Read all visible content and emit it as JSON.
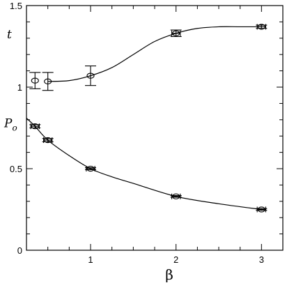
{
  "chart_data": {
    "type": "scatter",
    "title": "",
    "xlabel": "β",
    "ylabel": "",
    "xlim": [
      0.25,
      3.25
    ],
    "ylim": [
      0,
      1.5
    ],
    "x_ticks": [
      {
        "value": 1,
        "label": "1"
      },
      {
        "value": 2,
        "label": "2"
      },
      {
        "value": 3,
        "label": "3"
      }
    ],
    "y_ticks": [
      {
        "value": 0,
        "label": "0"
      },
      {
        "value": 0.5,
        "label": "0.5"
      },
      {
        "value": 1,
        "label": "1"
      },
      {
        "value": 1.5,
        "label": "1.5"
      }
    ],
    "series": [
      {
        "name": "t",
        "label_anchor": {
          "x": 0.33,
          "y": 1.3
        },
        "points": [
          {
            "x": 0.35,
            "y": 1.04,
            "err": 0.05,
            "xerr": 0
          },
          {
            "x": 0.5,
            "y": 1.035,
            "err": 0.055,
            "xerr": 0
          },
          {
            "x": 1.0,
            "y": 1.07,
            "err": 0.06,
            "xerr": 0
          },
          {
            "x": 2.0,
            "y": 1.33,
            "err": 0.02,
            "xerr": 0.05
          },
          {
            "x": 3.0,
            "y": 1.37,
            "err": 0.01,
            "xerr": 0.05
          }
        ],
        "curve": [
          [
            0.5,
            1.035
          ],
          [
            0.75,
            1.04
          ],
          [
            1.0,
            1.07
          ],
          [
            1.25,
            1.12
          ],
          [
            1.5,
            1.2
          ],
          [
            1.75,
            1.28
          ],
          [
            2.0,
            1.33
          ],
          [
            2.25,
            1.36
          ],
          [
            2.5,
            1.37
          ],
          [
            2.75,
            1.37
          ],
          [
            3.0,
            1.37
          ]
        ]
      },
      {
        "name": "P",
        "name_subscript": "o",
        "label_anchor": {
          "x": 0.27,
          "y": 0.755
        },
        "points": [
          {
            "x": 0.35,
            "y": 0.76,
            "err": 0.01,
            "xerr": 0.05
          },
          {
            "x": 0.5,
            "y": 0.675,
            "err": 0.01,
            "xerr": 0.05
          },
          {
            "x": 1.0,
            "y": 0.5,
            "err": 0.006,
            "xerr": 0.05
          },
          {
            "x": 2.0,
            "y": 0.33,
            "err": 0.005,
            "xerr": 0.05
          },
          {
            "x": 3.0,
            "y": 0.25,
            "err": 0.005,
            "xerr": 0.05
          }
        ],
        "curve": [
          [
            0.25,
            0.81
          ],
          [
            0.35,
            0.76
          ],
          [
            0.5,
            0.675
          ],
          [
            0.75,
            0.58
          ],
          [
            1.0,
            0.5
          ],
          [
            1.25,
            0.45
          ],
          [
            1.5,
            0.41
          ],
          [
            2.0,
            0.33
          ],
          [
            2.5,
            0.285
          ],
          [
            3.0,
            0.25
          ]
        ]
      }
    ]
  }
}
